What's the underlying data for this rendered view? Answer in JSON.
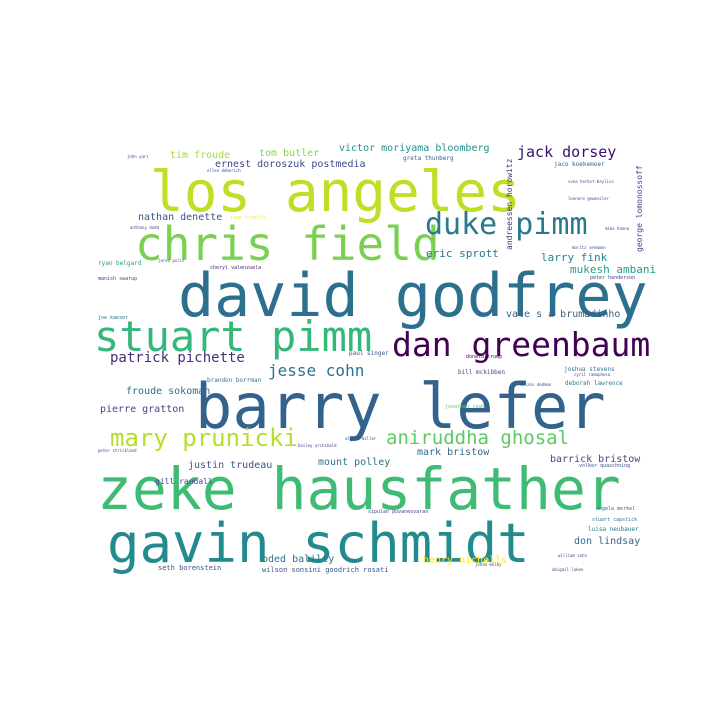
{
  "words": [
    {
      "text": "barry lefer",
      "color": "#33638d"
    },
    {
      "text": "zeke hausfather",
      "color": "#3fbc73"
    },
    {
      "text": "david godfrey",
      "color": "#2d708e"
    },
    {
      "text": "los angeles",
      "color": "#bddf26"
    },
    {
      "text": "gavin schmidt",
      "color": "#238a8d"
    },
    {
      "text": "chris field",
      "color": "#7ad151"
    },
    {
      "text": "stuart pimm",
      "color": "#35b779"
    },
    {
      "text": "dan greenbaum",
      "color": "#440154"
    },
    {
      "text": "duke pimm",
      "color": "#2a788e"
    },
    {
      "text": "mary prunicki",
      "color": "#b5de2b"
    },
    {
      "text": "aniruddha ghosal",
      "color": "#5ec962"
    },
    {
      "text": "jesse cohn",
      "color": "#2c728e"
    },
    {
      "text": "patrick pichette",
      "color": "#472d7b"
    },
    {
      "text": "jack dorsey",
      "color": "#3b0f70"
    },
    {
      "text": "eric sprott",
      "color": "#2a788e"
    },
    {
      "text": "nathan denette",
      "color": "#3b528b"
    },
    {
      "text": "victor moriyama bloomberg",
      "color": "#21918c"
    },
    {
      "text": "ernest doroszuk postmedia",
      "color": "#3e4989"
    },
    {
      "text": "tim froude",
      "color": "#a0da39"
    },
    {
      "text": "tom butler",
      "color": "#86d549"
    },
    {
      "text": "larry fink",
      "color": "#26828e"
    },
    {
      "text": "mukesh ambani",
      "color": "#1f9e89"
    },
    {
      "text": "vale s a brumadinho",
      "color": "#355f8d"
    },
    {
      "text": "froude sokoman",
      "color": "#2e6f8e"
    },
    {
      "text": "pierre gratton",
      "color": "#404688"
    },
    {
      "text": "mount polley",
      "color": "#2c728e"
    },
    {
      "text": "mark bristow",
      "color": "#31688e"
    },
    {
      "text": "barrick bristow",
      "color": "#3e4a89"
    },
    {
      "text": "don lindsay",
      "color": "#31688e"
    },
    {
      "text": "justin trudeau",
      "color": "#3b528b"
    },
    {
      "text": "oded balilty",
      "color": "#2c728e"
    },
    {
      "text": "henry nicholls",
      "color": "#fde725"
    },
    {
      "text": "gill randall",
      "color": "#3e4989"
    },
    {
      "text": "wilson sonsini goodrich rosati",
      "color": "#3b528b"
    },
    {
      "text": "seth borenstein",
      "color": "#3b528b"
    },
    {
      "text": "andreessen horowitz",
      "color": "#46327e"
    },
    {
      "text": "george lomonossoff",
      "color": "#3e4989"
    },
    {
      "text": "greta thunberg",
      "color": "#355f8d"
    },
    {
      "text": "jaco koekemoer",
      "color": "#31688e"
    },
    {
      "text": "jonathan raab",
      "color": "#6ece58"
    },
    {
      "text": "donald trump",
      "color": "#440154"
    },
    {
      "text": "paul singer",
      "color": "#3b528b"
    },
    {
      "text": "bill mckibben",
      "color": "#3e4989"
    },
    {
      "text": "brandon borrman",
      "color": "#2a788e"
    },
    {
      "text": "joshua stevens",
      "color": "#2c728e"
    },
    {
      "text": "deborah lawrence",
      "color": "#2a788e"
    },
    {
      "text": "volker quaschning",
      "color": "#3b528b"
    },
    {
      "text": "angela merkel",
      "color": "#31688e"
    },
    {
      "text": "stuart capstick",
      "color": "#2a788e"
    },
    {
      "text": "luisa neubauer",
      "color": "#2a788e"
    },
    {
      "text": "sipulan puvanesvaran",
      "color": "#3e4989"
    },
    {
      "text": "peter henderson",
      "color": "#433e85"
    },
    {
      "text": "ryan belgard",
      "color": "#1f9e89"
    },
    {
      "text": "manish swarup",
      "color": "#3e4989"
    },
    {
      "text": "joe kaeser",
      "color": "#2a788e"
    },
    {
      "text": "cheryl valenzuela",
      "color": "#482878"
    },
    {
      "text": "anthony dodd",
      "color": "#404688"
    },
    {
      "text": "jared polis",
      "color": "#3b528b"
    },
    {
      "text": "jono kraftik",
      "color": "#fde725"
    },
    {
      "text": "ellen deberich",
      "color": "#3e4989"
    },
    {
      "text": "john yari",
      "color": "#3e4989"
    },
    {
      "text": "svea herbst-bayliss",
      "color": "#3b528b"
    },
    {
      "text": "leonore gewessler",
      "color": "#3e4989"
    },
    {
      "text": "moritz seemann",
      "color": "#3e4989"
    },
    {
      "text": "mike hanna",
      "color": "#3e4989"
    },
    {
      "text": "alicia miller",
      "color": "#3e4989"
    },
    {
      "text": "bailey archibald",
      "color": "#3e4989"
    },
    {
      "text": "johan melby",
      "color": "#3e4989"
    },
    {
      "text": "william sohn",
      "color": "#3e4989"
    },
    {
      "text": "abigail luken",
      "color": "#3e4989"
    },
    {
      "text": "cyril ramaphosa",
      "color": "#3e4989"
    },
    {
      "text": "peter strickland",
      "color": "#3e4989"
    },
    {
      "text": "mclain dedmon",
      "color": "#3e4989"
    }
  ]
}
